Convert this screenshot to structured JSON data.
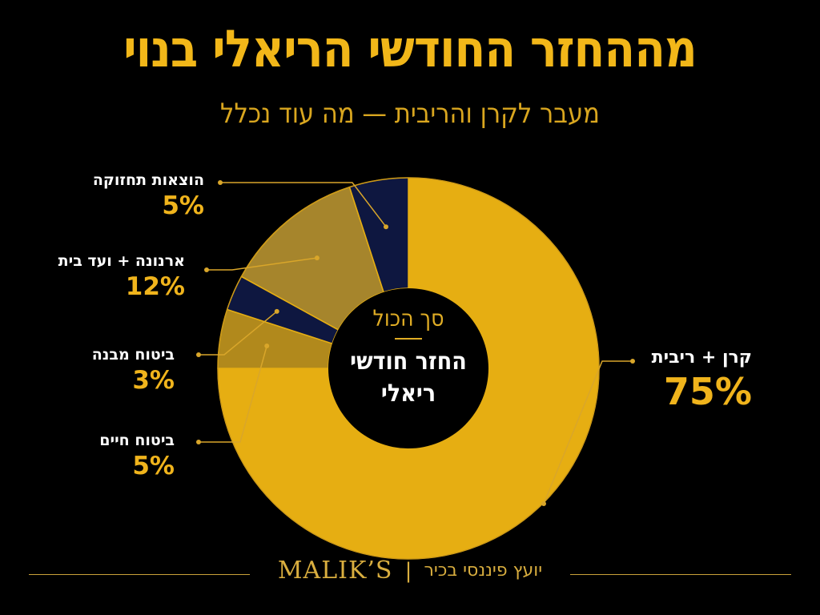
{
  "header": {
    "title": "מההחזר החודשי הריאלי בנוי",
    "subtitle": "מעבר לקרן והריבית — מה עוד נכלל"
  },
  "center": {
    "top": "סך הכול",
    "main_line1": "החזר חודשי",
    "main_line2": "ריאלי"
  },
  "chart_data": {
    "type": "pie",
    "donut": true,
    "start": "top",
    "direction": "clockwise",
    "labels": [
      "קרן + ריבית",
      "ביטוח חיים",
      "ביטוח מבנה",
      "ארנונה + ועד בית",
      "הוצאות תחזוקה"
    ],
    "values": [
      75,
      5,
      3,
      12,
      5
    ],
    "value_labels": [
      "75%",
      "5%",
      "3%",
      "12%",
      "5%"
    ],
    "colors": [
      "#e6ae12",
      "#b1891c",
      "#0e1740",
      "#a6852c",
      "#0e1740"
    ]
  },
  "footer": {
    "brand": "MALIK’S",
    "separator": "|",
    "tagline": "יועץ פיננסי בכיר"
  },
  "colors": {
    "background": "#000000",
    "accent": "#f2b719",
    "navy": "#0e1740",
    "white": "#ffffff"
  }
}
